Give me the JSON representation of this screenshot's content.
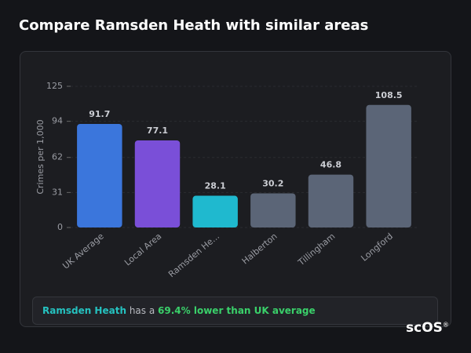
{
  "page_title": "Compare Ramsden Heath with similar areas",
  "chart_data": {
    "type": "bar",
    "y_label": "Crimes per 1,000",
    "categories": [
      "UK Average",
      "Local Area",
      "Ramsden He...",
      "Halberton",
      "Tillingham",
      "Longford"
    ],
    "values": [
      91.7,
      77.1,
      28.1,
      30.2,
      46.8,
      108.5
    ],
    "colors": [
      "#3b76dc",
      "#7a4fd8",
      "#1fb9cf",
      "#5b6577",
      "#5b6577",
      "#5b6577"
    ],
    "ylim": [
      0,
      125
    ],
    "yticks": [
      0,
      31,
      62,
      94,
      125
    ],
    "grid": true
  },
  "summary": {
    "area": "Ramsden Heath",
    "text": "has a",
    "highlight": "69.4% lower than UK average"
  },
  "logo": {
    "text": "scOS",
    "mark": "®"
  }
}
